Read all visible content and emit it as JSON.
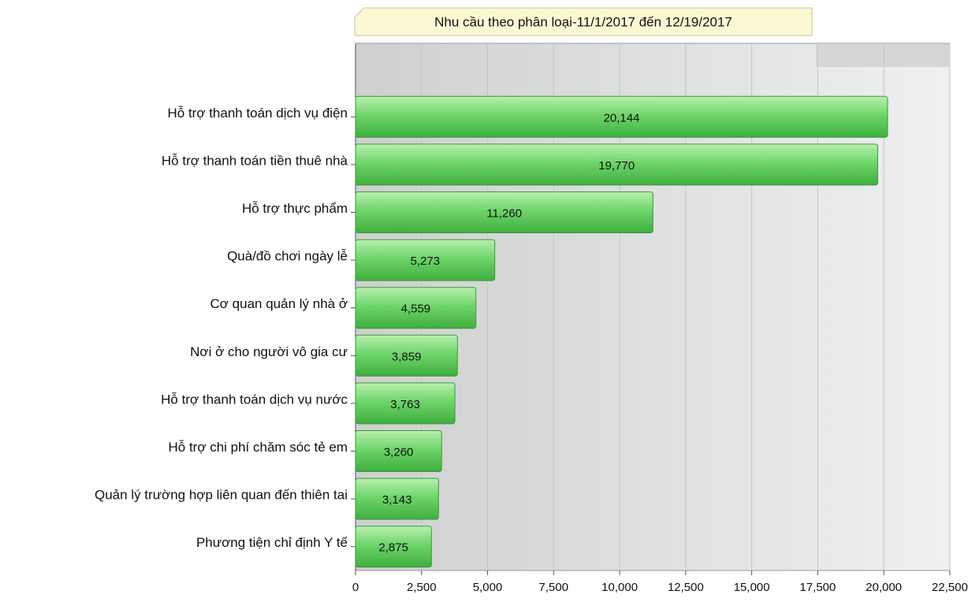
{
  "chart_data": {
    "type": "bar",
    "orientation": "horizontal",
    "title": "Nhu cầu theo phân loại-11/1/2017 đến 12/19/2017",
    "categories": [
      "Hỗ trợ thanh toán dịch vụ điện",
      "Hỗ trợ thanh toán tiền thuê nhà",
      "Hỗ trợ thực phẩm",
      "Quà/đồ chơi ngày lễ",
      "Cơ quan quản lý nhà ở",
      "Nơi ở cho người vô gia cư",
      "Hỗ trợ thanh toán dịch vụ nước",
      "Hỗ trợ chi phí chăm sóc tẻ em",
      "Quản lý trường hợp liên quan đến thiên tai",
      "Phương tiện chỉ định Y tế"
    ],
    "values": [
      20144,
      19770,
      11260,
      5273,
      4559,
      3859,
      3763,
      3260,
      3143,
      2875
    ],
    "value_labels": [
      "20,144",
      "19,770",
      "11,260",
      "5,273",
      "4,559",
      "3,859",
      "3,763",
      "3,260",
      "3,143",
      "2,875"
    ],
    "color": "#5cc85c",
    "xlim": [
      0,
      22500
    ],
    "xticks": [
      0,
      {
        "value": 2500,
        "label": "2,500"
      },
      {
        "value": 5000,
        "label": "5,000"
      },
      {
        "value": 7500,
        "label": "7,500"
      },
      {
        "value": 10000,
        "label": "10,000"
      },
      {
        "value": 12500,
        "label": "12,500"
      },
      {
        "value": 15000,
        "label": "15,000"
      },
      {
        "value": 17500,
        "label": "17,500"
      },
      {
        "value": 20000,
        "label": "20,000"
      },
      {
        "value": 22500,
        "label": "22,500"
      }
    ],
    "grid": true
  }
}
